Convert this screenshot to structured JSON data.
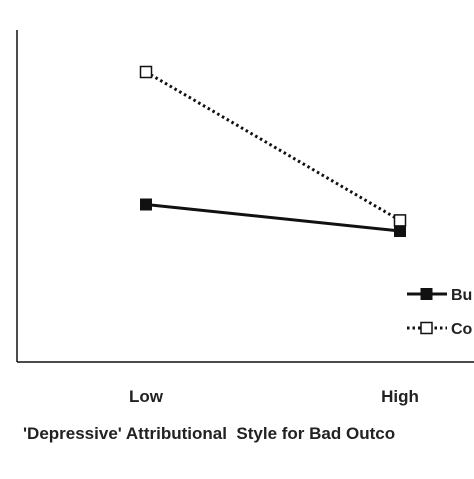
{
  "chart_data": {
    "type": "line",
    "categories": [
      "Low",
      "High"
    ],
    "xlabel": "'Depressive' Attributional  Style for Bad Outco",
    "ylabel": "",
    "title": "",
    "grid": false,
    "legend_position": "bottom-right",
    "series": [
      {
        "name": "Bu",
        "values": [
          4.75,
          4.5
        ],
        "line_style": "solid",
        "marker": "filled-square",
        "color": "#111111"
      },
      {
        "name": "Co",
        "values": [
          6.0,
          4.6
        ],
        "line_style": "dotted",
        "marker": "open-square",
        "color": "#111111"
      }
    ]
  }
}
